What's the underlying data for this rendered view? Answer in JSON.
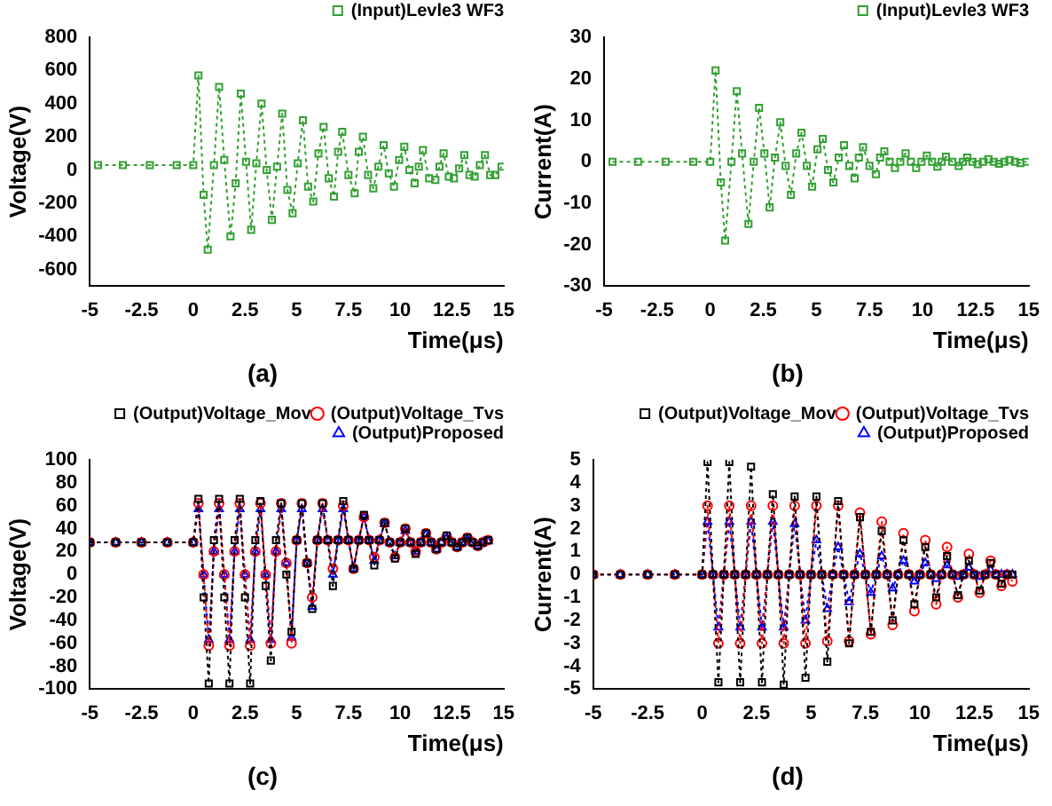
{
  "chart_data": [
    {
      "type": "line",
      "xlabel": "Time(μs)",
      "ylabel": "Voltage(V)",
      "annotations": [
        "(a)"
      ],
      "legend": "top right",
      "marker": "square",
      "line_style": "dotted",
      "xlim": [
        -5,
        15
      ],
      "xticks": [
        -5,
        -2.5,
        0,
        2.5,
        5,
        7.5,
        10,
        12.5,
        15
      ],
      "ylim": [
        -700,
        800
      ],
      "yticks": [
        -600,
        -400,
        -200,
        0,
        200,
        400,
        600,
        800
      ],
      "x": [
        -4.6,
        -3.4,
        -2.1,
        -0.8,
        0,
        0.25,
        0.5,
        0.7,
        1.0,
        1.25,
        1.5,
        1.8,
        2.05,
        2.3,
        2.55,
        2.8,
        3.05,
        3.3,
        3.55,
        3.8,
        4.05,
        4.3,
        4.55,
        4.8,
        5.05,
        5.3,
        5.55,
        5.8,
        6.05,
        6.3,
        6.55,
        6.8,
        7.0,
        7.2,
        7.5,
        7.8,
        8.0,
        8.2,
        8.45,
        8.7,
        8.95,
        9.2,
        9.45,
        9.7,
        9.95,
        10.2,
        10.45,
        10.7,
        10.9,
        11.1,
        11.4,
        11.7,
        11.9,
        12.1,
        12.35,
        12.6,
        12.85,
        13.1,
        13.35,
        13.6,
        13.85,
        14.1,
        14.35,
        14.6,
        14.9
      ],
      "series": [
        {
          "name": "(Input)Levle3 WF3",
          "color": "#33a033",
          "values": [
            30,
            30,
            30,
            30,
            30,
            570,
            -150,
            -480,
            30,
            500,
            60,
            -400,
            -80,
            460,
            50,
            -360,
            40,
            400,
            0,
            -300,
            20,
            340,
            -120,
            -260,
            40,
            300,
            -100,
            -190,
            100,
            260,
            -50,
            -160,
            110,
            230,
            -30,
            -140,
            110,
            200,
            -30,
            -110,
            20,
            150,
            -20,
            -100,
            60,
            140,
            0,
            -80,
            20,
            120,
            -50,
            -60,
            20,
            100,
            -40,
            -50,
            10,
            90,
            -30,
            -40,
            30,
            90,
            -30,
            -30,
            20
          ]
        }
      ]
    },
    {
      "type": "line",
      "xlabel": "Time(μs)",
      "ylabel": "Current(A)",
      "annotations": [
        "(b)"
      ],
      "legend": "top right",
      "marker": "square",
      "line_style": "dotted",
      "xlim": [
        -5,
        15
      ],
      "xticks": [
        -5,
        -2.5,
        0,
        2.5,
        5,
        7.5,
        10,
        12.5,
        15
      ],
      "ylim": [
        -30,
        30
      ],
      "yticks": [
        -30,
        -20,
        -10,
        0,
        10,
        20,
        30
      ],
      "x": [
        -4.6,
        -3.4,
        -2.1,
        -0.8,
        0,
        0.25,
        0.5,
        0.7,
        1.0,
        1.25,
        1.5,
        1.8,
        2.05,
        2.3,
        2.55,
        2.8,
        3.05,
        3.3,
        3.55,
        3.8,
        4.05,
        4.3,
        4.55,
        4.8,
        5.05,
        5.3,
        5.55,
        5.8,
        6.05,
        6.3,
        6.55,
        6.8,
        7.0,
        7.2,
        7.5,
        7.8,
        8.0,
        8.2,
        8.45,
        8.7,
        8.95,
        9.2,
        9.45,
        9.7,
        9.95,
        10.2,
        10.45,
        10.7,
        10.9,
        11.1,
        11.4,
        11.7,
        11.9,
        12.1,
        12.35,
        12.6,
        12.85,
        13.1,
        13.35,
        13.6,
        13.85,
        14.1,
        14.35,
        14.6,
        14.9
      ],
      "series": [
        {
          "name": "(Input)Levle3 WF3",
          "color": "#33a033",
          "values": [
            0,
            0,
            0,
            0,
            0,
            22,
            -5,
            -19,
            0,
            17,
            2,
            -15,
            0,
            13,
            2,
            -11,
            1,
            9.5,
            -1,
            -8,
            2,
            7,
            -1,
            -6,
            3,
            5.5,
            -2,
            -5,
            1,
            4,
            -1,
            -4,
            1,
            3.5,
            -1,
            -3,
            1,
            2.5,
            0,
            -1.5,
            0,
            2,
            0,
            -1.5,
            0,
            1.5,
            0,
            -1.2,
            0,
            1.2,
            0,
            -1,
            0,
            1,
            0,
            -0.6,
            0,
            0.6,
            0,
            -0.5,
            0,
            0.4,
            0,
            -0.3,
            0
          ]
        }
      ]
    },
    {
      "type": "line",
      "xlabel": "Time(μs)",
      "ylabel": "Voltage(V)",
      "annotations": [
        "(c)"
      ],
      "legend": "top right",
      "line_style": "dotted",
      "xlim": [
        -5,
        15
      ],
      "xticks": [
        -5,
        -2.5,
        0,
        2.5,
        5,
        7.5,
        10,
        12.5,
        15
      ],
      "ylim": [
        -100,
        100
      ],
      "yticks": [
        -100,
        -80,
        -60,
        -40,
        -20,
        0,
        20,
        40,
        60,
        80,
        100
      ],
      "x": [
        -5,
        -3.75,
        -2.5,
        -1.25,
        0,
        0.25,
        0.5,
        0.75,
        1,
        1.25,
        1.5,
        1.75,
        2,
        2.25,
        2.5,
        2.75,
        3,
        3.25,
        3.5,
        3.75,
        4,
        4.25,
        4.5,
        4.75,
        5,
        5.25,
        5.5,
        5.75,
        6,
        6.25,
        6.5,
        6.75,
        7,
        7.25,
        7.5,
        7.75,
        8,
        8.25,
        8.5,
        8.75,
        9,
        9.25,
        9.5,
        9.75,
        10,
        10.25,
        10.5,
        10.75,
        11,
        11.25,
        11.5,
        11.75,
        12,
        12.25,
        12.5,
        12.75,
        13,
        13.25,
        13.5,
        13.75,
        14,
        14.25
      ],
      "series": [
        {
          "name": "(Output)Voltage_Mov",
          "color": "#000000",
          "marker": "square",
          "values": [
            28,
            28,
            28,
            28,
            28,
            66,
            -20,
            -95,
            30,
            66,
            -20,
            -95,
            30,
            66,
            -20,
            -95,
            30,
            64,
            -10,
            -75,
            30,
            62,
            0,
            -50,
            30,
            62,
            10,
            -30,
            30,
            62,
            30,
            -10,
            30,
            64,
            30,
            5,
            30,
            52,
            30,
            8,
            30,
            45,
            28,
            14,
            28,
            40,
            28,
            18,
            28,
            36,
            28,
            22,
            28,
            34,
            28,
            24,
            28,
            32,
            28,
            25,
            28,
            30
          ]
        },
        {
          "name": "(Output)Voltage_Tvs",
          "color": "#ff0000",
          "marker": "circle",
          "values": [
            28,
            28,
            28,
            28,
            28,
            62,
            0,
            -62,
            20,
            62,
            0,
            -62,
            20,
            62,
            0,
            -62,
            20,
            62,
            0,
            -60,
            20,
            62,
            10,
            -60,
            30,
            62,
            10,
            -20,
            30,
            62,
            30,
            5,
            30,
            60,
            30,
            5,
            30,
            50,
            30,
            15,
            30,
            45,
            28,
            15,
            28,
            40,
            28,
            20,
            28,
            36,
            28,
            22,
            28,
            33,
            28,
            24,
            28,
            32,
            28,
            25,
            28,
            30
          ]
        },
        {
          "name": "(Output)Proposed",
          "color": "#0000ff",
          "marker": "triangle",
          "values": [
            28,
            28,
            28,
            28,
            28,
            57,
            0,
            -57,
            20,
            57,
            0,
            -57,
            20,
            57,
            0,
            -57,
            20,
            57,
            0,
            -57,
            20,
            57,
            10,
            -55,
            30,
            57,
            10,
            -28,
            30,
            57,
            30,
            0,
            30,
            57,
            30,
            5,
            30,
            50,
            30,
            12,
            30,
            44,
            28,
            16,
            28,
            38,
            28,
            20,
            28,
            35,
            28,
            22,
            28,
            32,
            28,
            24,
            28,
            31,
            28,
            25,
            28,
            29
          ]
        }
      ]
    },
    {
      "type": "line",
      "xlabel": "Time(μs)",
      "ylabel": "Current(A)",
      "annotations": [
        "(d)"
      ],
      "legend": "top right",
      "line_style": "dotted",
      "xlim": [
        -5,
        15
      ],
      "xticks": [
        -5,
        -2.5,
        0,
        2.5,
        5,
        7.5,
        10,
        12.5,
        15
      ],
      "ylim": [
        -5,
        5
      ],
      "yticks": [
        -5,
        -4,
        -3,
        -2,
        -1,
        0,
        1,
        2,
        3,
        4,
        5
      ],
      "x": [
        -5,
        -3.75,
        -2.5,
        -1.25,
        0,
        0.25,
        0.5,
        0.75,
        1,
        1.25,
        1.5,
        1.75,
        2,
        2.25,
        2.5,
        2.75,
        3,
        3.25,
        3.5,
        3.75,
        4,
        4.25,
        4.5,
        4.75,
        5,
        5.25,
        5.5,
        5.75,
        6,
        6.25,
        6.5,
        6.75,
        7,
        7.25,
        7.5,
        7.75,
        8,
        8.25,
        8.5,
        8.75,
        9,
        9.25,
        9.5,
        9.75,
        10,
        10.25,
        10.5,
        10.75,
        11,
        11.25,
        11.5,
        11.75,
        12,
        12.25,
        12.5,
        12.75,
        13,
        13.25,
        13.5,
        13.75,
        14,
        14.25
      ],
      "series": [
        {
          "name": "(Output)Voltage_Mov",
          "color": "#000000",
          "marker": "square",
          "values": [
            0,
            0,
            0,
            0,
            0,
            4.9,
            0,
            -4.7,
            0,
            4.9,
            0,
            -4.7,
            0,
            4.7,
            0,
            -4.7,
            0,
            3.5,
            0,
            -4.8,
            0,
            3.4,
            0,
            -4.5,
            0,
            3.4,
            0,
            -3.8,
            0,
            3.2,
            0,
            -3,
            0,
            2.5,
            0,
            -2.5,
            0,
            1.9,
            0,
            -2,
            0,
            1.5,
            0,
            -1.3,
            0,
            1.2,
            0,
            -1,
            0,
            0.8,
            0,
            -0.9,
            0,
            0.6,
            0,
            -0.7,
            0,
            0.5,
            0,
            -0.4,
            0,
            0
          ]
        },
        {
          "name": "(Output)Voltage_Tvs",
          "color": "#ff0000",
          "marker": "circle",
          "values": [
            0,
            0,
            0,
            0,
            0,
            3,
            0,
            -3,
            0,
            3,
            0,
            -3,
            0,
            3,
            0,
            -3,
            0,
            3,
            0,
            -3,
            0,
            3,
            0,
            -3,
            0,
            3,
            0,
            -2.9,
            0,
            3,
            0,
            -2.9,
            0,
            2.7,
            0,
            -2.6,
            0,
            2.3,
            0,
            -2.2,
            0,
            1.8,
            0,
            -1.6,
            0,
            1.5,
            0,
            -1.3,
            0,
            1.2,
            0,
            -1,
            0,
            0.9,
            0,
            -0.8,
            0,
            0.6,
            0,
            -0.5,
            0,
            -0.3
          ]
        },
        {
          "name": "(Output)Proposed",
          "color": "#0000ff",
          "marker": "triangle",
          "values": [
            0,
            0,
            0,
            0,
            0,
            2.3,
            0,
            -2.3,
            0,
            2.3,
            0,
            -2.3,
            0,
            2.3,
            0,
            -2.3,
            0,
            2.3,
            0,
            -2.3,
            0,
            2.2,
            0,
            -2,
            0,
            1.5,
            0,
            -1.5,
            0,
            1.2,
            0,
            -1.2,
            0,
            0.9,
            0,
            -0.8,
            0,
            0.8,
            0,
            -0.6,
            0,
            0.6,
            0,
            -0.3,
            0,
            0.5,
            0,
            -0.2,
            0,
            0.4,
            0,
            -0.1,
            0,
            0.3,
            0,
            -0.1,
            0,
            0.2,
            0,
            0,
            0,
            0
          ]
        }
      ]
    }
  ]
}
